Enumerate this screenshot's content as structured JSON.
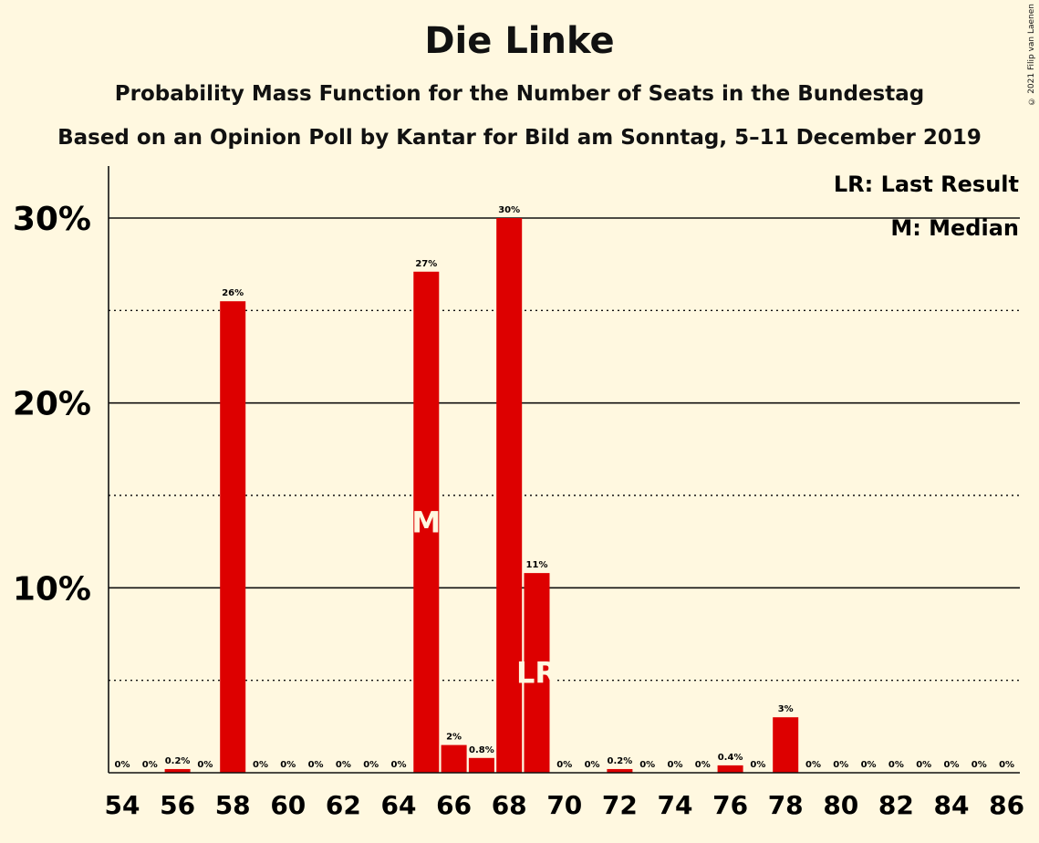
{
  "chart_data": {
    "type": "bar",
    "title": "Die Linke",
    "subtitle": "Probability Mass Function for the Number of Seats in the Bundestag",
    "subtitle2": "Based on an Opinion Poll by Kantar for Bild am Sonntag, 5–11 December 2019",
    "copyright": "© 2021 Filip van Laenen",
    "x": [
      54,
      55,
      56,
      57,
      58,
      59,
      60,
      61,
      62,
      63,
      64,
      65,
      66,
      67,
      68,
      69,
      70,
      71,
      72,
      73,
      74,
      75,
      76,
      77,
      78,
      79,
      80,
      81,
      82,
      83,
      84,
      85,
      86
    ],
    "values": [
      0,
      0,
      0.2,
      0,
      25.5,
      0,
      0,
      0,
      0,
      0,
      0,
      27.1,
      1.5,
      0.8,
      30.0,
      10.8,
      0,
      0,
      0.2,
      0,
      0,
      0,
      0.4,
      0,
      3.0,
      0,
      0,
      0,
      0,
      0,
      0,
      0,
      0
    ],
    "labels": [
      "0%",
      "0%",
      "0.2%",
      "0%",
      "26%",
      "0%",
      "0%",
      "0%",
      "0%",
      "0%",
      "0%",
      "27%",
      "2%",
      "0.8%",
      "30%",
      "11%",
      "0%",
      "0%",
      "0.2%",
      "0%",
      "0%",
      "0%",
      "0.4%",
      "0%",
      "3%",
      "0%",
      "0%",
      "0%",
      "0%",
      "0%",
      "0%",
      "0%",
      "0%"
    ],
    "x_tick_labels": [
      "54",
      "56",
      "58",
      "60",
      "62",
      "64",
      "66",
      "68",
      "70",
      "72",
      "74",
      "76",
      "78",
      "80",
      "82",
      "84",
      "86"
    ],
    "y_ticks": [
      10,
      20,
      30
    ],
    "y_tick_labels": [
      "10%",
      "20%",
      "30%"
    ],
    "ylim": [
      0,
      32.8
    ],
    "median": 65,
    "median_label": "M",
    "last_result": 69,
    "last_result_label": "LR",
    "legend": [
      "LR: Last Result",
      "M: Median"
    ],
    "legend_position": "top-right",
    "bar_color": "#dd0000",
    "background_color": "#fff8e0"
  }
}
